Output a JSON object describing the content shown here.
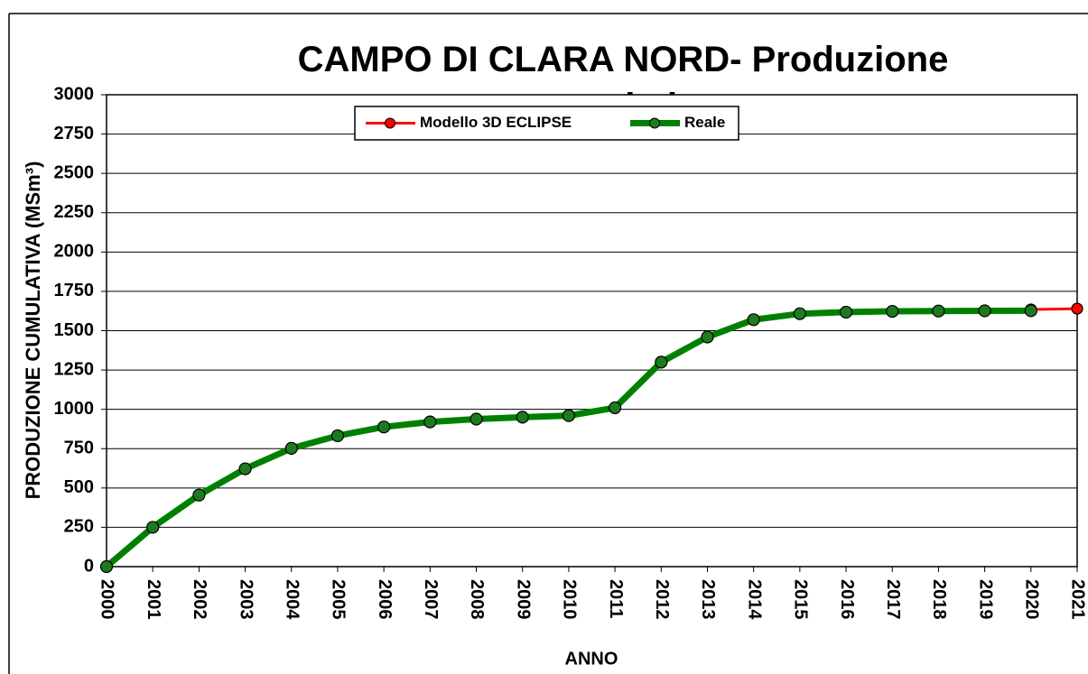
{
  "chart_data": {
    "type": "line",
    "title": "CAMPO DI CLARA NORD- Produzione cumulativa",
    "x_label": "ANNO",
    "y_label": "PRODUZIONE CUMULATIVA (MSm³)",
    "x": [
      2000,
      2001,
      2002,
      2003,
      2004,
      2005,
      2006,
      2007,
      2008,
      2009,
      2010,
      2011,
      2012,
      2013,
      2014,
      2015,
      2016,
      2017,
      2018,
      2019,
      2020,
      2021
    ],
    "xlim": [
      2000,
      2021
    ],
    "xticks": [
      2000,
      2001,
      2002,
      2003,
      2004,
      2005,
      2006,
      2007,
      2008,
      2009,
      2010,
      2011,
      2012,
      2013,
      2014,
      2015,
      2016,
      2017,
      2018,
      2019,
      2020,
      2021
    ],
    "ylim": [
      0,
      3000
    ],
    "yticks": [
      0,
      250,
      500,
      750,
      1000,
      1250,
      1500,
      1750,
      2000,
      2250,
      2500,
      2750,
      3000
    ],
    "grid": true,
    "legend": "upper center",
    "series": [
      {
        "name": "Modello 3D ECLIPSE",
        "color": "#ff0000",
        "values": [
          0,
          250,
          455,
          622,
          752,
          832,
          888,
          920,
          938,
          950,
          960,
          1010,
          1300,
          1460,
          1570,
          1608,
          1618,
          1623,
          1625,
          1626,
          1635,
          1640
        ]
      },
      {
        "name": "Reale",
        "color": "#008000",
        "values": [
          0,
          250,
          455,
          622,
          752,
          832,
          888,
          920,
          938,
          950,
          960,
          1010,
          1300,
          1460,
          1570,
          1608,
          1618,
          1623,
          1625,
          1626,
          1627,
          null
        ]
      }
    ]
  }
}
